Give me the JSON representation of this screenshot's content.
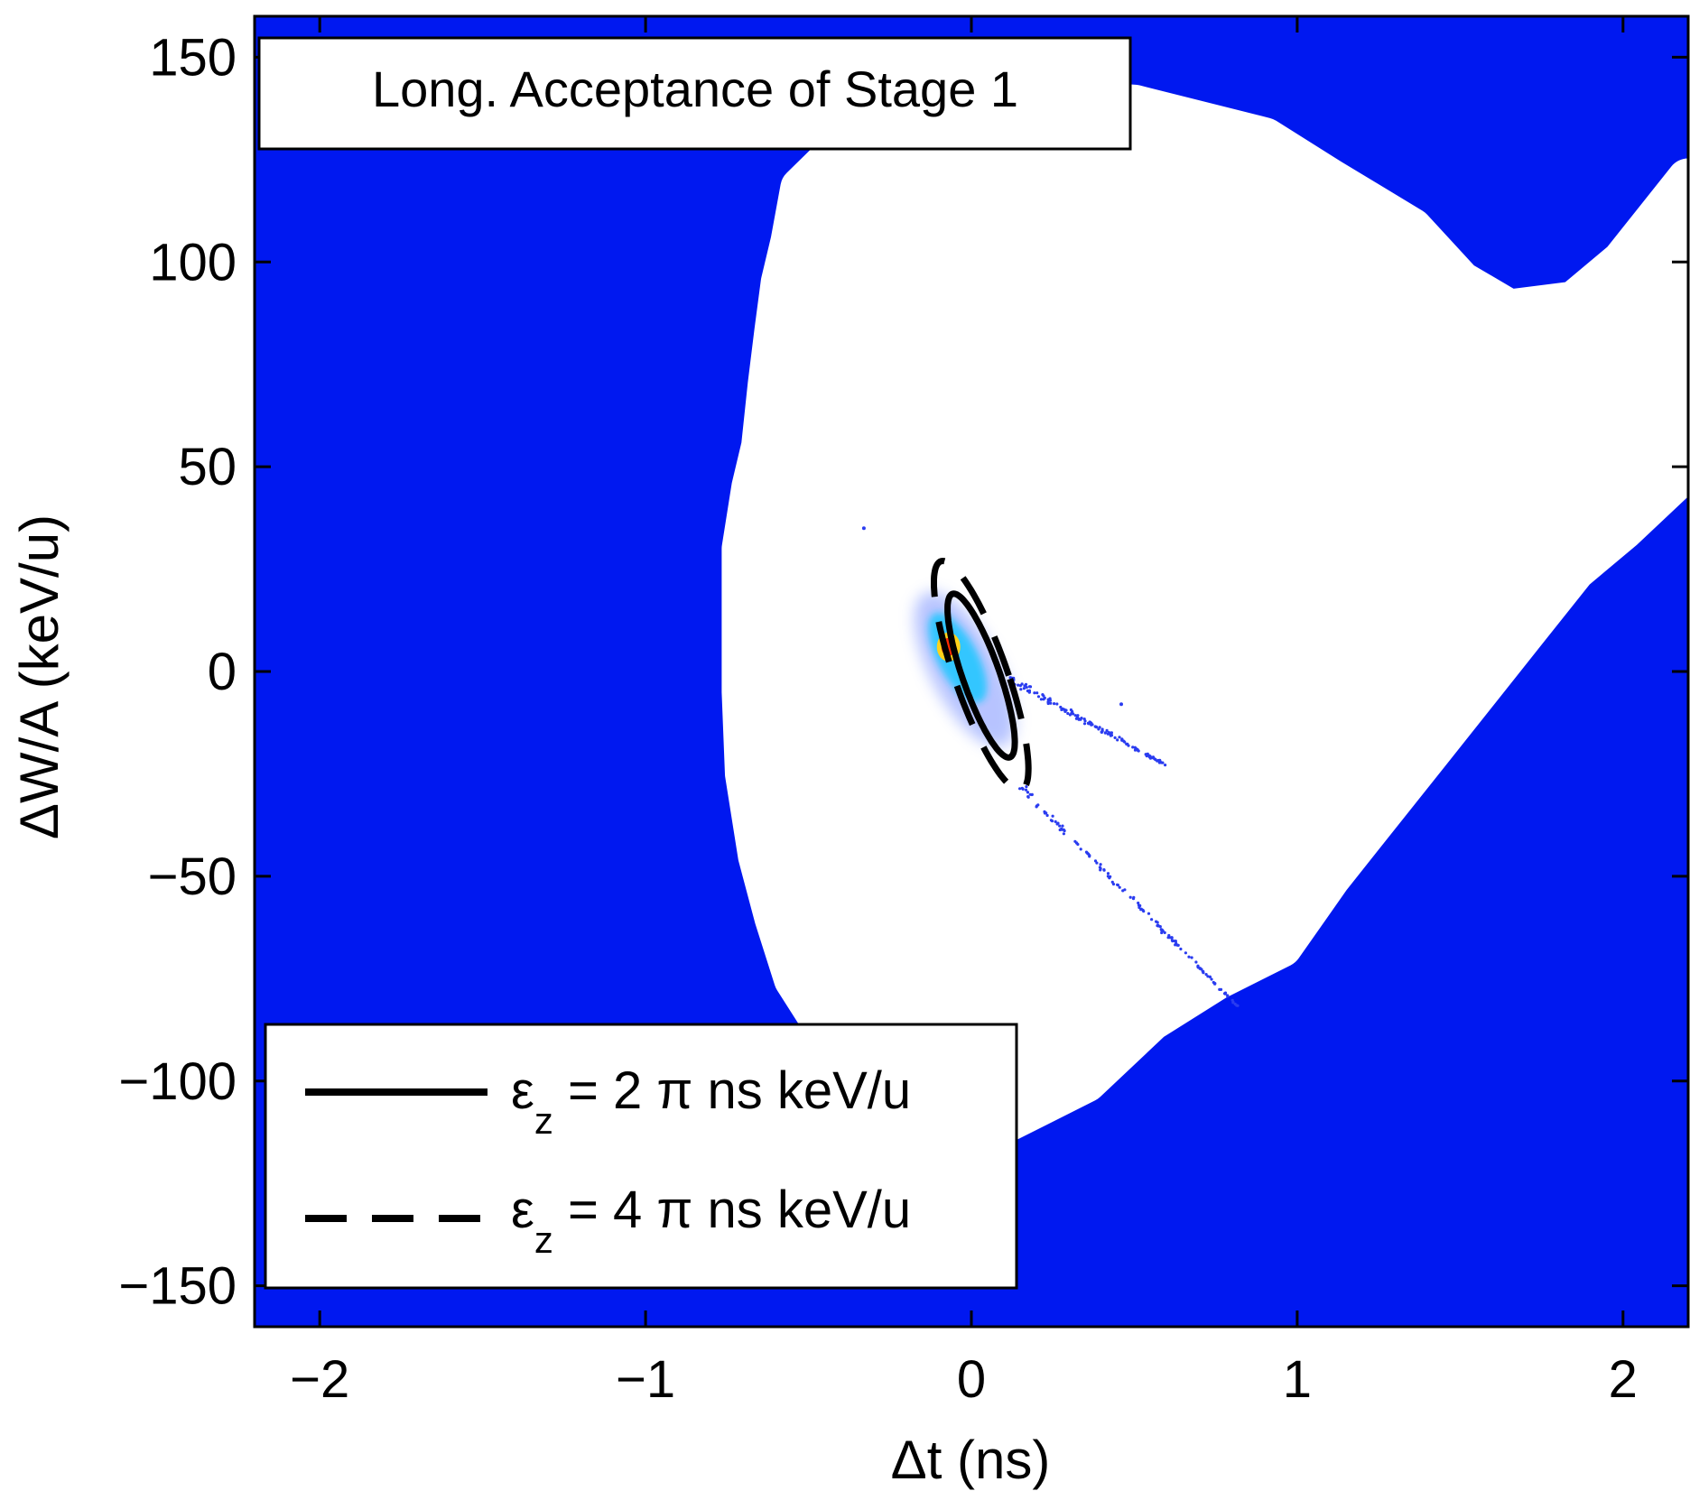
{
  "chart_data": {
    "type": "scatter",
    "title": "Long. Acceptance of Stage 1",
    "xlabel": "Δt (ns)",
    "ylabel": "ΔW/A (keV/u)",
    "xlim": [
      -2.2,
      2.2
    ],
    "ylim": [
      -160,
      160
    ],
    "x_ticks": [
      -2,
      -1,
      0,
      1,
      2
    ],
    "x_tick_labels": [
      "−2",
      "−1",
      "0",
      "1",
      "2"
    ],
    "y_ticks": [
      -150,
      -100,
      -50,
      0,
      50,
      100,
      150
    ],
    "y_tick_labels": [
      "−150",
      "−100",
      "−50",
      "0",
      "50",
      "100",
      "150"
    ],
    "grid": false,
    "legend_position": "bottom-left",
    "colors": {
      "background": "#0018f0",
      "acceptance": "#ffffff",
      "particles": "#2a3cf0",
      "core": "#ff2a00",
      "ellipse": "#000000"
    },
    "acceptance_region_boundary": [
      [
        -0.43,
        125
      ],
      [
        -0.52,
        118
      ],
      [
        -0.55,
        105
      ],
      [
        -0.58,
        95
      ],
      [
        -0.6,
        83
      ],
      [
        -0.62,
        70
      ],
      [
        -0.64,
        55
      ],
      [
        -0.67,
        45
      ],
      [
        -0.7,
        30
      ],
      [
        -0.7,
        10
      ],
      [
        -0.7,
        -5
      ],
      [
        -0.69,
        -25
      ],
      [
        -0.65,
        -45
      ],
      [
        -0.6,
        -60
      ],
      [
        -0.54,
        -75
      ],
      [
        -0.46,
        -85
      ],
      [
        -0.33,
        -95
      ],
      [
        -0.2,
        -105
      ],
      [
        -0.1,
        -116
      ],
      [
        0.05,
        -112
      ],
      [
        0.2,
        -106
      ],
      [
        0.35,
        -100
      ],
      [
        0.55,
        -85
      ],
      [
        0.75,
        -75
      ],
      [
        0.95,
        -67
      ],
      [
        1.1,
        -50
      ],
      [
        1.25,
        -35
      ],
      [
        1.4,
        -20
      ],
      [
        1.55,
        -5
      ],
      [
        1.7,
        10
      ],
      [
        1.85,
        25
      ],
      [
        2.0,
        35
      ],
      [
        2.2,
        50
      ],
      [
        2.2,
        120
      ],
      [
        2.1,
        110
      ],
      [
        2.0,
        100
      ],
      [
        1.85,
        90
      ],
      [
        1.65,
        88
      ],
      [
        1.5,
        95
      ],
      [
        1.35,
        108
      ],
      [
        1.1,
        120
      ],
      [
        0.9,
        130
      ],
      [
        0.5,
        138
      ],
      [
        0.1,
        140
      ],
      [
        -0.2,
        138
      ]
    ],
    "series": [
      {
        "name": "εz = 2 π ns keV/u",
        "style": "solid",
        "ellipse": {
          "center": [
            0.03,
            -1
          ],
          "semi_axis_t": 0.06,
          "semi_axis_w": 20,
          "tilt_ns_per_keV": -0.0042
        }
      },
      {
        "name": "εz = 4 π ns keV/u",
        "style": "dashed",
        "ellipse": {
          "center": [
            0.03,
            -1
          ],
          "semi_axis_t": 0.085,
          "semi_axis_w": 28,
          "tilt_ns_per_keV": -0.0042
        }
      }
    ],
    "beam": {
      "core_center": [
        -0.07,
        6
      ],
      "tails": [
        {
          "from": [
            0.12,
            -2
          ],
          "to": [
            0.6,
            -23
          ]
        },
        {
          "from": [
            0.15,
            -28
          ],
          "to": [
            0.82,
            -82
          ]
        }
      ],
      "outliers": [
        [
          -0.33,
          35
        ],
        [
          0.46,
          -8
        ]
      ]
    },
    "legend": {
      "symbol": "ε",
      "subscript": "z",
      "items": [
        {
          "prefix": " = 2 π ns keV/u"
        },
        {
          "prefix": " = 4 π ns keV/u"
        }
      ]
    }
  }
}
